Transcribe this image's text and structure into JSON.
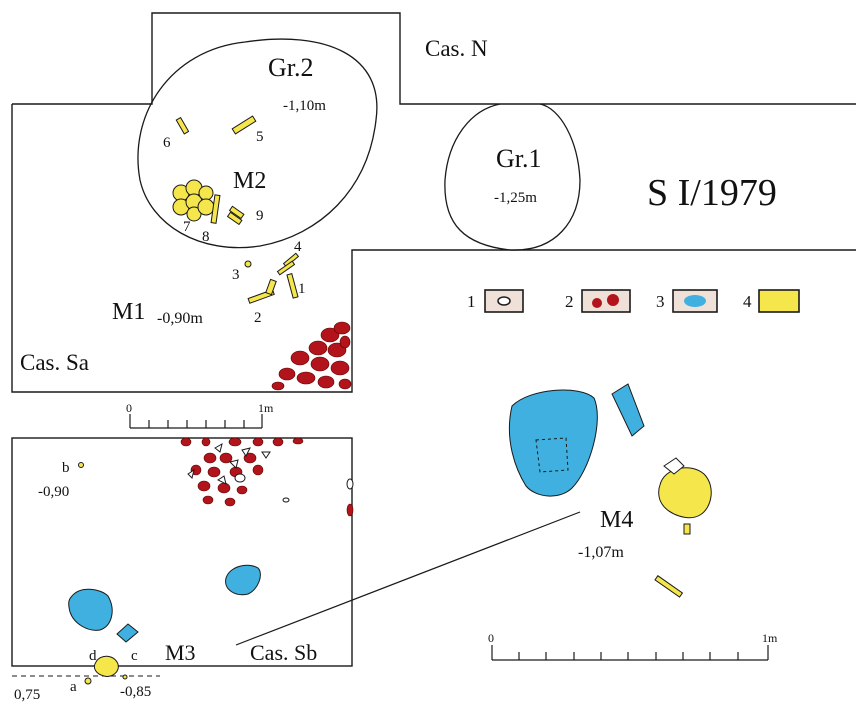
{
  "plan_title": "S I/1979",
  "sections": {
    "cas_n": "Cas. N",
    "cas_sa": "Cas. Sa",
    "cas_sb": "Cas. Sb"
  },
  "pits": {
    "gr2": {
      "name": "Gr.2",
      "depth": "-1,10m"
    },
    "gr1": {
      "name": "Gr.1",
      "depth": "-1,25m"
    }
  },
  "graves": {
    "m1": {
      "name": "M1",
      "depth": "-0,90m"
    },
    "m2": {
      "name": "M2"
    },
    "m3": {
      "name": "M3"
    },
    "m4": {
      "name": "M4",
      "depth": "-1,07m"
    }
  },
  "find_numbers": {
    "n1": "1",
    "n2": "2",
    "n3": "3",
    "n4": "4",
    "n5": "5",
    "n6": "6",
    "n7": "7",
    "n8": "8",
    "n9": "9"
  },
  "points": {
    "a": "a",
    "b": "b",
    "c": "c",
    "d": "d",
    "b_depth": "-0,90",
    "a_depth": "0,75",
    "c_depth": "-0,85"
  },
  "legend": [
    {
      "num": "1",
      "icon": "stone-outline-icon",
      "fill": "#ffffff"
    },
    {
      "num": "2",
      "icon": "burnt-clay-icon",
      "fill": "#b3141b"
    },
    {
      "num": "3",
      "icon": "blue-patch-icon",
      "fill": "#3fb0df"
    },
    {
      "num": "4",
      "icon": "bone-icon",
      "fill": "#f5e64b"
    }
  ],
  "scales": {
    "upper": {
      "zero": "0",
      "unit": "1m"
    },
    "lower": {
      "zero": "0",
      "unit": "1m"
    }
  },
  "colors": {
    "burnt": "#b3141b",
    "blue": "#3fb0df",
    "bone": "#f5e64b",
    "outline": "#1a1a1a"
  }
}
